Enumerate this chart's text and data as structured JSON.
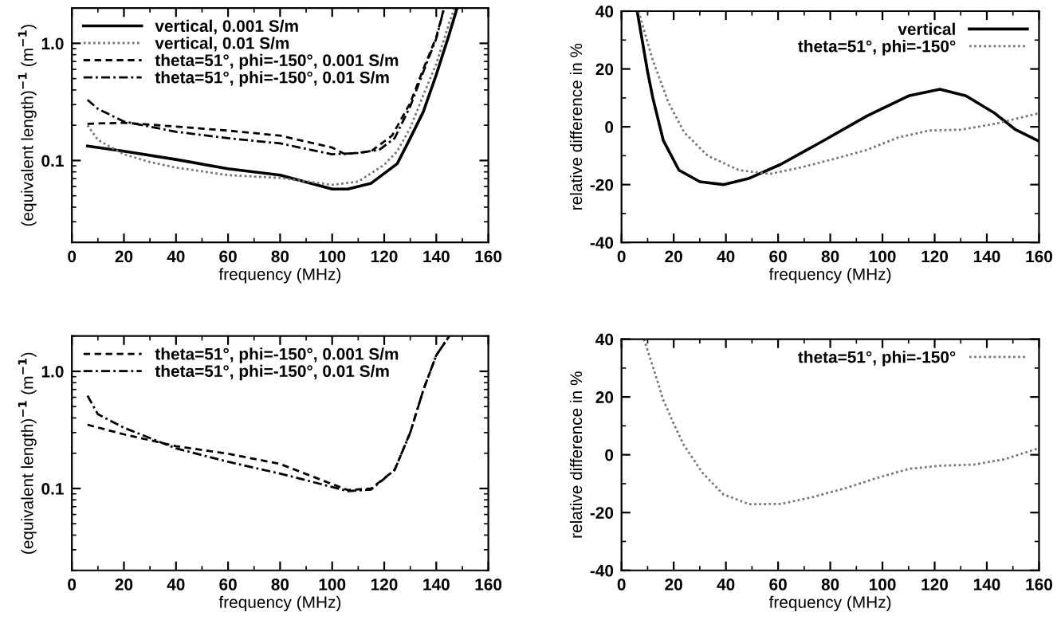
{
  "chart_data": [
    {
      "type": "line",
      "xlabel": "frequency (MHz)",
      "ylabel": "(equivalent length)$^{−1}$ (m$^{−1}$)",
      "log": "y",
      "xlim": [
        0,
        160
      ],
      "xticks": [
        0,
        20,
        40,
        60,
        80,
        100,
        120,
        140,
        160
      ],
      "ylim": [
        0.02,
        2
      ],
      "yticks": [
        0.1,
        {
          "value": 1,
          "label": "1.0"
        }
      ],
      "legend": "top left",
      "grid": false,
      "series": [
        {
          "name": "vertical, 0.001 S/m",
          "color": "#000000",
          "line_style": "solid",
          "x": [
            6,
            20,
            40,
            60,
            80,
            100,
            106,
            115,
            125,
            130,
            135,
            140,
            145,
            148
          ],
          "values": [
            0.133,
            0.12,
            0.102,
            0.085,
            0.075,
            0.057,
            0.057,
            0.064,
            0.094,
            0.155,
            0.26,
            0.54,
            1.2,
            2.0
          ]
        },
        {
          "name": "vertical, 0.01 S/m",
          "color": "#777777",
          "line_style": "dotted",
          "x": [
            6,
            10,
            20,
            30,
            40,
            60,
            80,
            100,
            110,
            120,
            125,
            130,
            135,
            140,
            145,
            147
          ],
          "values": [
            0.2,
            0.15,
            0.113,
            0.097,
            0.087,
            0.075,
            0.071,
            0.062,
            0.066,
            0.092,
            0.12,
            0.19,
            0.36,
            0.67,
            1.5,
            2.0
          ]
        },
        {
          "name": "theta=51°, phi=-150°, 0.001 S/m",
          "color": "#000000",
          "line_style": "dashed",
          "x": [
            6,
            20,
            40,
            60,
            80,
            100,
            105,
            115,
            123,
            130,
            135,
            140,
            143
          ],
          "values": [
            0.206,
            0.21,
            0.195,
            0.18,
            0.163,
            0.129,
            0.113,
            0.12,
            0.163,
            0.31,
            0.6,
            1.13,
            2.0
          ]
        },
        {
          "name": "theta=51°, phi=-150°, 0.01 S/m",
          "color": "#000000",
          "line_style": "dashdot",
          "x": [
            6,
            10,
            20,
            40,
            60,
            80,
            100,
            110,
            118,
            124,
            130,
            135,
            140,
            143
          ],
          "values": [
            0.33,
            0.276,
            0.215,
            0.176,
            0.155,
            0.14,
            0.113,
            0.116,
            0.123,
            0.155,
            0.29,
            0.57,
            1.1,
            2.0
          ]
        }
      ]
    },
    {
      "type": "line",
      "xlabel": "frequency (MHz)",
      "ylabel": "relative difference in %",
      "xlim": [
        0,
        160
      ],
      "xticks": [
        0,
        20,
        40,
        60,
        80,
        100,
        120,
        140,
        160
      ],
      "ylim": [
        -40,
        40
      ],
      "yticks": [
        -40,
        -20,
        0,
        20,
        40
      ],
      "legend": "top right",
      "grid": false,
      "series": [
        {
          "name": "vertical",
          "color": "#000000",
          "line_style": "solid",
          "x": [
            6,
            10,
            12,
            16,
            22,
            30,
            39,
            49,
            61,
            77,
            94,
            110,
            122,
            132,
            143,
            151,
            160
          ],
          "values": [
            40,
            19,
            10,
            -4.7,
            -15,
            -19,
            -20,
            -17.8,
            -13,
            -5,
            3.7,
            10.7,
            13,
            10.7,
            4.7,
            -1,
            -5
          ]
        },
        {
          "name": "theta=51°, phi=-150°",
          "color": "#777777",
          "line_style": "dotted",
          "x": [
            6.5,
            12,
            18,
            24,
            33,
            45,
            57,
            69,
            82,
            94,
            106,
            118,
            130,
            143,
            160
          ],
          "values": [
            40,
            23,
            8.4,
            -1.9,
            -10,
            -15,
            -16.3,
            -14,
            -11,
            -8,
            -3.7,
            -1.3,
            -1,
            1,
            4.7
          ]
        }
      ]
    },
    {
      "type": "line",
      "xlabel": "frequency (MHz)",
      "ylabel": "(equivalent length)$^{−1}$ (m$^{−1}$)",
      "log": "y",
      "xlim": [
        0,
        160
      ],
      "xticks": [
        0,
        20,
        40,
        60,
        80,
        100,
        120,
        140,
        160
      ],
      "ylim": [
        0.02,
        2
      ],
      "yticks": [
        0.1,
        {
          "value": 1,
          "label": "1.0"
        }
      ],
      "legend": "top left",
      "grid": false,
      "series": [
        {
          "name": "theta=51°, phi=-150°, 0.001 S/m",
          "color": "#000000",
          "line_style": "dashed",
          "x": [
            6,
            20,
            40,
            60,
            80,
            100,
            106,
            115,
            124,
            130,
            135,
            140,
            145
          ],
          "values": [
            0.35,
            0.29,
            0.23,
            0.198,
            0.162,
            0.109,
            0.097,
            0.1,
            0.144,
            0.3,
            0.69,
            1.37,
            2.0
          ]
        },
        {
          "name": "theta=51°, phi=-150°, 0.01 S/m",
          "color": "#000000",
          "line_style": "dashdot",
          "x": [
            6,
            10,
            20,
            40,
            60,
            80,
            100,
            106,
            115,
            124,
            130,
            135,
            140,
            145
          ],
          "values": [
            0.62,
            0.43,
            0.33,
            0.22,
            0.169,
            0.134,
            0.103,
            0.095,
            0.098,
            0.144,
            0.3,
            0.69,
            1.37,
            2.0
          ]
        }
      ]
    },
    {
      "type": "line",
      "xlabel": "frequency (MHz)",
      "ylabel": "relative difference in %",
      "xlim": [
        0,
        160
      ],
      "xticks": [
        0,
        20,
        40,
        60,
        80,
        100,
        120,
        140,
        160
      ],
      "ylim": [
        -40,
        40
      ],
      "yticks": [
        -40,
        -20,
        0,
        20,
        40
      ],
      "legend": "top right",
      "grid": false,
      "series": [
        {
          "name": "theta=51°, phi=-150°",
          "color": "#777777",
          "line_style": "dotted",
          "x": [
            8.6,
            12,
            16,
            20,
            24,
            31,
            39,
            49,
            61,
            73,
            86,
            98,
            110,
            122,
            135,
            147,
            160
          ],
          "values": [
            40,
            30.5,
            19,
            10.7,
            3.2,
            -6.2,
            -13.7,
            -17.1,
            -17,
            -14.7,
            -11.5,
            -8,
            -4.9,
            -3.8,
            -3.4,
            -1.5,
            2.3
          ]
        }
      ]
    }
  ]
}
